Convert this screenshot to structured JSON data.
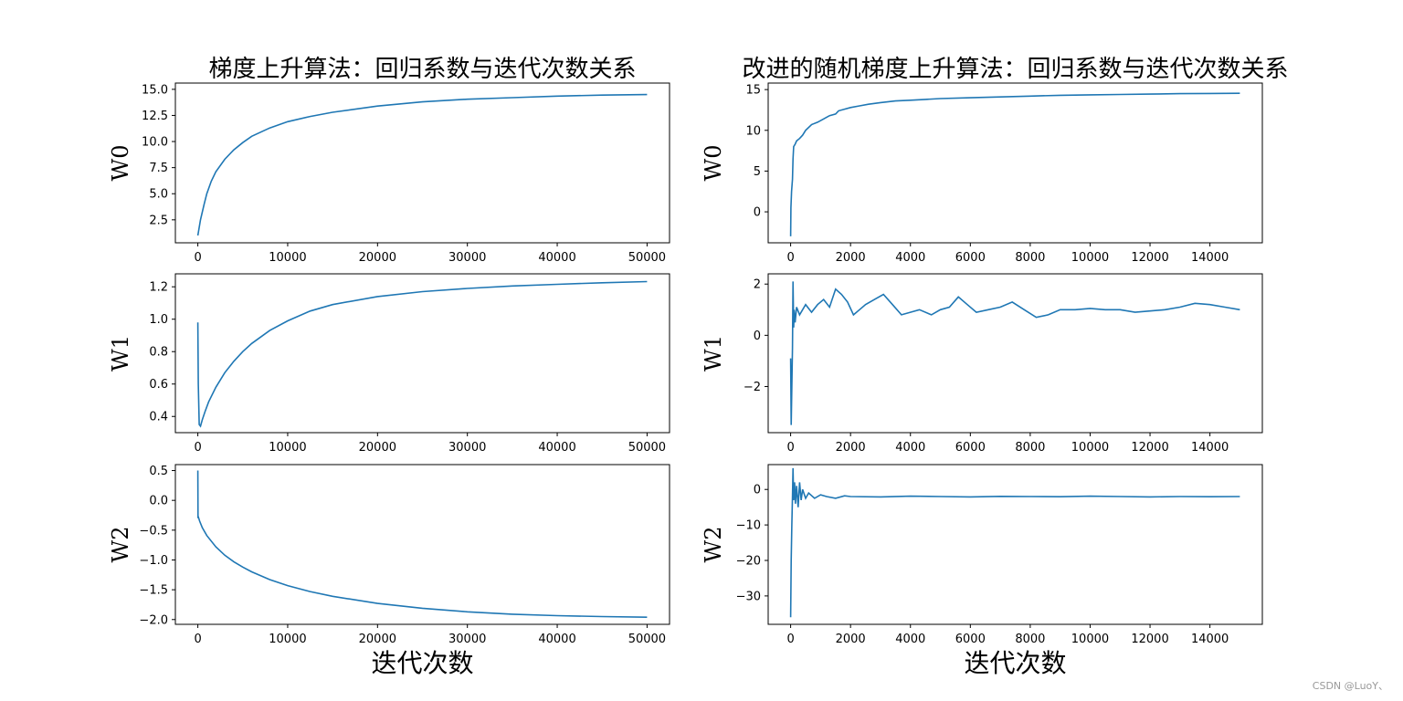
{
  "watermark": "CSDN @LuoY、",
  "line_color": "#1f77b4",
  "chart_data": [
    {
      "id": "gd-w0",
      "type": "line",
      "col": 0,
      "row": 0,
      "title": "梯度上升算法：回归系数与迭代次数关系",
      "ylabel": "W0",
      "xlabel": "",
      "xlim": [
        -2500,
        52500
      ],
      "ylim": [
        0.3,
        15.6
      ],
      "xticks": [
        0,
        10000,
        20000,
        30000,
        40000,
        50000
      ],
      "yticks": [
        2.5,
        5.0,
        7.5,
        10.0,
        12.5,
        15.0
      ],
      "ytick_labels": [
        "2.5",
        "5.0",
        "7.5",
        "10.0",
        "12.5",
        "15.0"
      ],
      "series": [
        {
          "name": "W0",
          "x": [
            0,
            300,
            700,
            1000,
            1500,
            2000,
            3000,
            4000,
            5000,
            6000,
            8000,
            10000,
            12500,
            15000,
            20000,
            25000,
            30000,
            35000,
            40000,
            45000,
            50000
          ],
          "values": [
            1.0,
            2.5,
            4.0,
            5.0,
            6.2,
            7.1,
            8.3,
            9.2,
            9.9,
            10.5,
            11.3,
            11.9,
            12.4,
            12.8,
            13.4,
            13.8,
            14.05,
            14.2,
            14.35,
            14.45,
            14.5
          ]
        }
      ]
    },
    {
      "id": "gd-w1",
      "type": "line",
      "col": 0,
      "row": 1,
      "ylabel": "W1",
      "xlabel": "",
      "xlim": [
        -2500,
        52500
      ],
      "ylim": [
        0.3,
        1.28
      ],
      "xticks": [
        0,
        10000,
        20000,
        30000,
        40000,
        50000
      ],
      "yticks": [
        0.4,
        0.6,
        0.8,
        1.0,
        1.2
      ],
      "ytick_labels": [
        "0.4",
        "0.6",
        "0.8",
        "1.0",
        "1.2"
      ],
      "series": [
        {
          "name": "W1",
          "x": [
            0,
            50,
            150,
            300,
            500,
            800,
            1200,
            2000,
            3000,
            4000,
            5000,
            6000,
            8000,
            10000,
            12500,
            15000,
            20000,
            25000,
            30000,
            35000,
            40000,
            45000,
            50000
          ],
          "values": [
            0.98,
            0.6,
            0.35,
            0.34,
            0.38,
            0.43,
            0.49,
            0.58,
            0.67,
            0.74,
            0.8,
            0.85,
            0.93,
            0.99,
            1.05,
            1.09,
            1.14,
            1.17,
            1.19,
            1.205,
            1.215,
            1.225,
            1.232
          ]
        }
      ]
    },
    {
      "id": "gd-w2",
      "type": "line",
      "col": 0,
      "row": 2,
      "ylabel": "W2",
      "xlabel": "迭代次数",
      "xlim": [
        -2500,
        52500
      ],
      "ylim": [
        -2.08,
        0.6
      ],
      "xticks": [
        0,
        10000,
        20000,
        30000,
        40000,
        50000
      ],
      "yticks": [
        -2.0,
        -1.5,
        -1.0,
        -0.5,
        0.0,
        0.5
      ],
      "ytick_labels": [
        "−2.0",
        "−1.5",
        "−1.0",
        "−0.5",
        "0.0",
        "0.5"
      ],
      "series": [
        {
          "name": "W2",
          "x": [
            0,
            20,
            40,
            200,
            500,
            1000,
            2000,
            3000,
            4000,
            5000,
            6000,
            8000,
            10000,
            12500,
            15000,
            20000,
            25000,
            30000,
            35000,
            40000,
            45000,
            50000
          ],
          "values": [
            0.5,
            -0.3,
            -0.27,
            -0.35,
            -0.46,
            -0.59,
            -0.78,
            -0.92,
            -1.03,
            -1.12,
            -1.2,
            -1.33,
            -1.43,
            -1.53,
            -1.61,
            -1.73,
            -1.81,
            -1.87,
            -1.91,
            -1.935,
            -1.95,
            -1.96
          ]
        }
      ]
    },
    {
      "id": "sgd-w0",
      "type": "line",
      "col": 1,
      "row": 0,
      "title": "改进的随机梯度上升算法：回归系数与迭代次数关系",
      "ylabel": "W0",
      "xlabel": "",
      "xlim": [
        -750,
        15750
      ],
      "ylim": [
        -3.8,
        15.8
      ],
      "xticks": [
        0,
        2000,
        4000,
        6000,
        8000,
        10000,
        12000,
        14000
      ],
      "yticks": [
        0,
        5,
        10,
        15
      ],
      "ytick_labels": [
        "0",
        "5",
        "10",
        "15"
      ],
      "series": [
        {
          "name": "W0",
          "x": [
            0,
            10,
            30,
            60,
            80,
            100,
            150,
            200,
            300,
            400,
            500,
            700,
            900,
            1100,
            1300,
            1500,
            1600,
            1800,
            2000,
            2300,
            2600,
            3000,
            3500,
            4000,
            4500,
            5000,
            6000,
            7000,
            8000,
            9000,
            10000,
            11000,
            12000,
            13000,
            14000,
            15000
          ],
          "values": [
            -3.0,
            0.5,
            2.5,
            4.0,
            6.5,
            8.0,
            8.3,
            8.7,
            9.0,
            9.4,
            10.0,
            10.7,
            11.0,
            11.4,
            11.8,
            12.0,
            12.4,
            12.6,
            12.8,
            13.0,
            13.2,
            13.4,
            13.6,
            13.7,
            13.8,
            13.9,
            14.0,
            14.1,
            14.2,
            14.3,
            14.35,
            14.4,
            14.45,
            14.5,
            14.52,
            14.55
          ]
        }
      ]
    },
    {
      "id": "sgd-w1",
      "type": "line",
      "col": 1,
      "row": 1,
      "ylabel": "W1",
      "xlabel": "",
      "xlim": [
        -750,
        15750
      ],
      "ylim": [
        -3.8,
        2.4
      ],
      "xticks": [
        0,
        2000,
        4000,
        6000,
        8000,
        10000,
        12000,
        14000
      ],
      "yticks": [
        -2,
        0,
        2
      ],
      "ytick_labels": [
        "−2",
        "0",
        "2"
      ],
      "series": [
        {
          "name": "W1",
          "x": [
            0,
            20,
            40,
            60,
            80,
            100,
            120,
            150,
            200,
            300,
            400,
            500,
            700,
            900,
            1100,
            1300,
            1500,
            1700,
            1900,
            2100,
            2300,
            2500,
            2800,
            3100,
            3400,
            3700,
            4000,
            4300,
            4700,
            5000,
            5300,
            5600,
            5900,
            6200,
            6600,
            7000,
            7400,
            7800,
            8200,
            8600,
            9000,
            9500,
            10000,
            10500,
            11000,
            11500,
            12000,
            12500,
            13000,
            13500,
            14000,
            14500,
            15000
          ],
          "values": [
            -0.9,
            -3.5,
            -2.0,
            -0.5,
            2.1,
            0.3,
            1.0,
            0.5,
            1.1,
            0.8,
            1.0,
            1.2,
            0.9,
            1.2,
            1.4,
            1.1,
            1.8,
            1.6,
            1.3,
            0.8,
            1.0,
            1.2,
            1.4,
            1.6,
            1.2,
            0.8,
            0.9,
            1.0,
            0.8,
            1.0,
            1.1,
            1.5,
            1.2,
            0.9,
            1.0,
            1.1,
            1.3,
            1.0,
            0.7,
            0.8,
            1.0,
            1.0,
            1.05,
            1.0,
            1.0,
            0.9,
            0.95,
            1.0,
            1.1,
            1.25,
            1.2,
            1.1,
            1.0
          ]
        }
      ]
    },
    {
      "id": "sgd-w2",
      "type": "line",
      "col": 1,
      "row": 2,
      "ylabel": "W2",
      "xlabel": "迭代次数",
      "xlim": [
        -750,
        15750
      ],
      "ylim": [
        -38,
        7
      ],
      "xticks": [
        0,
        2000,
        4000,
        6000,
        8000,
        10000,
        12000,
        14000
      ],
      "yticks": [
        -30,
        -20,
        -10,
        0
      ],
      "ytick_labels": [
        "−30",
        "−20",
        "−10",
        "0"
      ],
      "series": [
        {
          "name": "W2",
          "x": [
            0,
            20,
            40,
            60,
            80,
            100,
            130,
            160,
            200,
            250,
            300,
            350,
            400,
            500,
            600,
            800,
            1000,
            1200,
            1500,
            1800,
            2000,
            3000,
            4000,
            5000,
            6000,
            7000,
            8000,
            9000,
            10000,
            11000,
            12000,
            13000,
            14000,
            15000
          ],
          "values": [
            -36.0,
            -20.0,
            -10.0,
            -2.0,
            6.0,
            -3.0,
            2.0,
            -4.0,
            1.0,
            -5.0,
            2.0,
            -3.0,
            0.0,
            -2.5,
            -1.0,
            -2.5,
            -1.5,
            -2.0,
            -2.5,
            -1.8,
            -2.0,
            -2.1,
            -1.9,
            -2.0,
            -2.1,
            -1.95,
            -2.0,
            -2.05,
            -1.9,
            -2.0,
            -2.1,
            -2.0,
            -2.05,
            -2.0
          ]
        }
      ]
    }
  ]
}
